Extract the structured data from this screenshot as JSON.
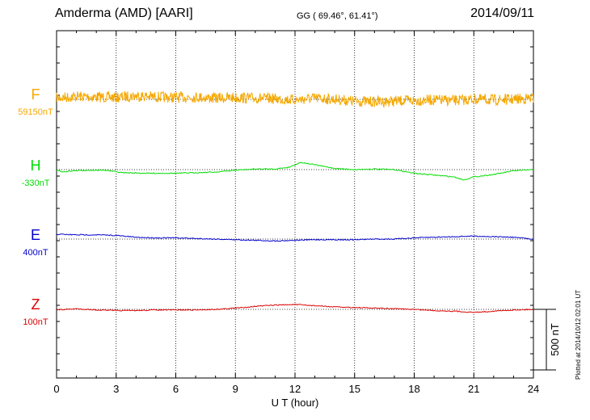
{
  "header": {
    "station": "Amderma (AMD)  [AARI]",
    "coords": "GG ( 69.46°,  61.41°)",
    "date": "2014/09/11"
  },
  "plotted": "Plotted at 2014/10/12 02:01  UT",
  "colors": {
    "F": "#f5a800",
    "H": "#00dd00",
    "E": "#0000cc",
    "Z": "#dd0000",
    "frame": "#000000"
  },
  "chart_data": {
    "type": "line",
    "xlabel": "U T (hour)",
    "xlim": [
      0,
      24
    ],
    "xticks": [
      0,
      3,
      6,
      9,
      12,
      15,
      18,
      21,
      24
    ],
    "x_grid_every_hours": 3,
    "scale_bar": {
      "label": "500 nT",
      "value_nT": 500
    },
    "series": [
      {
        "name": "F",
        "baseline": "59150nT",
        "noise_nT": 45,
        "points": [
          [
            0,
            -10
          ],
          [
            1,
            -25
          ],
          [
            2,
            -20
          ],
          [
            3,
            -15
          ],
          [
            4,
            -30
          ],
          [
            5,
            -20
          ],
          [
            6,
            -15
          ],
          [
            7,
            -20
          ],
          [
            8,
            -10
          ],
          [
            9,
            -15
          ],
          [
            10,
            -10
          ],
          [
            11,
            -5
          ],
          [
            12,
            5
          ],
          [
            13,
            -10
          ],
          [
            14,
            0
          ],
          [
            15,
            15
          ],
          [
            16,
            20
          ],
          [
            17,
            15
          ],
          [
            18,
            10
          ],
          [
            19,
            5
          ],
          [
            20,
            10
          ],
          [
            21,
            0
          ],
          [
            22,
            5
          ],
          [
            23,
            0
          ],
          [
            24,
            -10
          ]
        ]
      },
      {
        "name": "H",
        "baseline": "-330nT",
        "points": [
          [
            0,
            0
          ],
          [
            0.3,
            20
          ],
          [
            0.8,
            10
          ],
          [
            1.5,
            5
          ],
          [
            2.5,
            5
          ],
          [
            3.3,
            25
          ],
          [
            4.5,
            30
          ],
          [
            6,
            30
          ],
          [
            7,
            25
          ],
          [
            8,
            20
          ],
          [
            9,
            5
          ],
          [
            10,
            -5
          ],
          [
            11,
            -5
          ],
          [
            11.7,
            -20
          ],
          [
            12.3,
            -60
          ],
          [
            13,
            -40
          ],
          [
            14,
            -10
          ],
          [
            15,
            0
          ],
          [
            16,
            -5
          ],
          [
            17,
            0
          ],
          [
            18,
            30
          ],
          [
            19,
            45
          ],
          [
            20,
            60
          ],
          [
            20.5,
            85
          ],
          [
            21,
            60
          ],
          [
            22,
            40
          ],
          [
            23,
            10
          ],
          [
            24,
            0
          ]
        ]
      },
      {
        "name": "E",
        "baseline": "400nT",
        "points": [
          [
            0,
            -40
          ],
          [
            1,
            -35
          ],
          [
            2,
            -35
          ],
          [
            3,
            -30
          ],
          [
            4,
            -15
          ],
          [
            5,
            -10
          ],
          [
            6,
            -10
          ],
          [
            7,
            -5
          ],
          [
            8,
            0
          ],
          [
            9,
            5
          ],
          [
            10,
            10
          ],
          [
            11,
            15
          ],
          [
            12,
            10
          ],
          [
            13,
            5
          ],
          [
            14,
            5
          ],
          [
            15,
            5
          ],
          [
            16,
            0
          ],
          [
            17,
            0
          ],
          [
            18,
            -10
          ],
          [
            19,
            -15
          ],
          [
            20,
            -20
          ],
          [
            21,
            -25
          ],
          [
            22,
            -20
          ],
          [
            23,
            -15
          ],
          [
            24,
            0
          ]
        ]
      },
      {
        "name": "Z",
        "baseline": "100nT",
        "points": [
          [
            0,
            5
          ],
          [
            1,
            -5
          ],
          [
            2,
            5
          ],
          [
            3,
            10
          ],
          [
            4,
            10
          ],
          [
            5,
            5
          ],
          [
            6,
            5
          ],
          [
            7,
            5
          ],
          [
            8,
            0
          ],
          [
            9,
            -10
          ],
          [
            10,
            -25
          ],
          [
            11,
            -35
          ],
          [
            12,
            -40
          ],
          [
            13,
            -30
          ],
          [
            14,
            -20
          ],
          [
            15,
            -15
          ],
          [
            16,
            -10
          ],
          [
            17,
            -5
          ],
          [
            18,
            0
          ],
          [
            19,
            10
          ],
          [
            20,
            15
          ],
          [
            21,
            25
          ],
          [
            22,
            15
          ],
          [
            23,
            5
          ],
          [
            24,
            0
          ]
        ]
      }
    ]
  }
}
